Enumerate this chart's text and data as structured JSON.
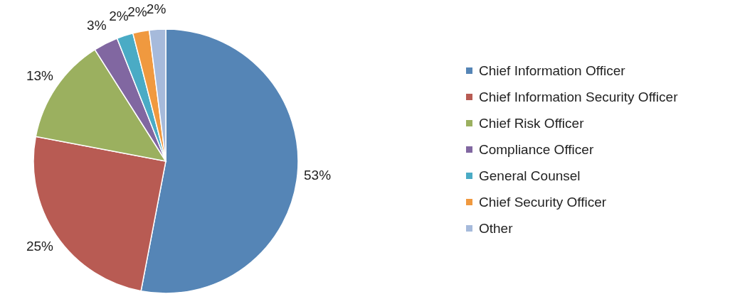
{
  "chart_data": {
    "type": "pie",
    "categories": [
      "Chief Information Officer",
      "Chief Information Security Officer",
      "Chief Risk Officer",
      "Compliance Officer",
      "General Counsel",
      "Chief Security Officer",
      "Other"
    ],
    "values": [
      53,
      25,
      13,
      3,
      2,
      2,
      2
    ],
    "colors": [
      "#5585b6",
      "#b85b53",
      "#9bb05f",
      "#8167a1",
      "#4aabc5",
      "#f0993f",
      "#a6badb"
    ],
    "value_labels": [
      "53%",
      "25%",
      "13%",
      "3%",
      "2%",
      "2%",
      "2%"
    ],
    "legend": "right"
  }
}
